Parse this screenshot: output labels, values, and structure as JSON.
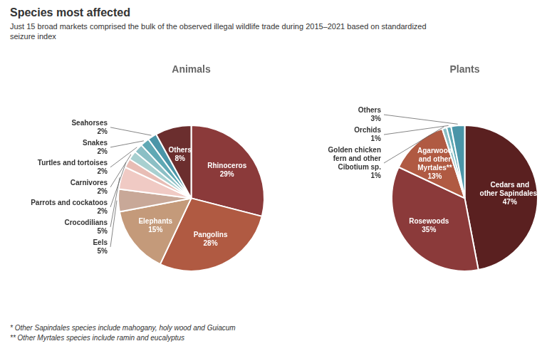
{
  "title": "Species most affected",
  "subtitle": "Just 15 broad markets comprised the bulk of the observed illegal wildlife trade during 2015–2021 based on standardized\nseizure index",
  "annotations": [
    "* Other Sapindales species include mahogany, holy wood and Guiacum",
    "** Other Myrtales species include ramin and eucalyptus"
  ],
  "chart_data": [
    {
      "type": "pie",
      "title": "Animals",
      "categories": [
        "Rhinoceros",
        "Pangolins",
        "Elephants",
        "Eels",
        "Crocodilians",
        "Parrots and cockatoos",
        "Carnivores",
        "Turtles and tortoises",
        "Snakes",
        "Seahorses",
        "Others"
      ],
      "values": [
        29,
        28,
        15,
        5,
        5,
        2,
        2,
        2,
        2,
        2,
        8
      ],
      "value_labels": [
        "29%",
        "28%",
        "15%",
        "5%",
        "5%",
        "2%",
        "2%",
        "2%",
        "2%",
        "2%",
        "8%"
      ],
      "colors": [
        "#8b3a3a",
        "#b05a42",
        "#c49a7a",
        "#c8a898",
        "#f0cac4",
        "#e8bdb5",
        "#a8d0d0",
        "#8bbfc5",
        "#5fa8b4",
        "#4a95a8",
        "#6b2e2e"
      ],
      "data_labels": true
    },
    {
      "type": "pie",
      "title": "Plants",
      "categories": [
        "Cedars and\nother Sapindales*",
        "Rosewoods",
        "Agarwood\nand other\nMyrtales**",
        "Golden chicken\nfern and other\nCibotium sp.",
        "Orchids",
        "Others"
      ],
      "values": [
        47,
        35,
        13,
        1,
        1,
        3
      ],
      "value_labels": [
        "47%",
        "35%",
        "13%",
        "1%",
        "1%",
        "3%"
      ],
      "colors": [
        "#5a2020",
        "#8b3a3a",
        "#b05a42",
        "#8bbfc5",
        "#5fa8b4",
        "#4a95a8"
      ],
      "data_labels": true
    }
  ]
}
